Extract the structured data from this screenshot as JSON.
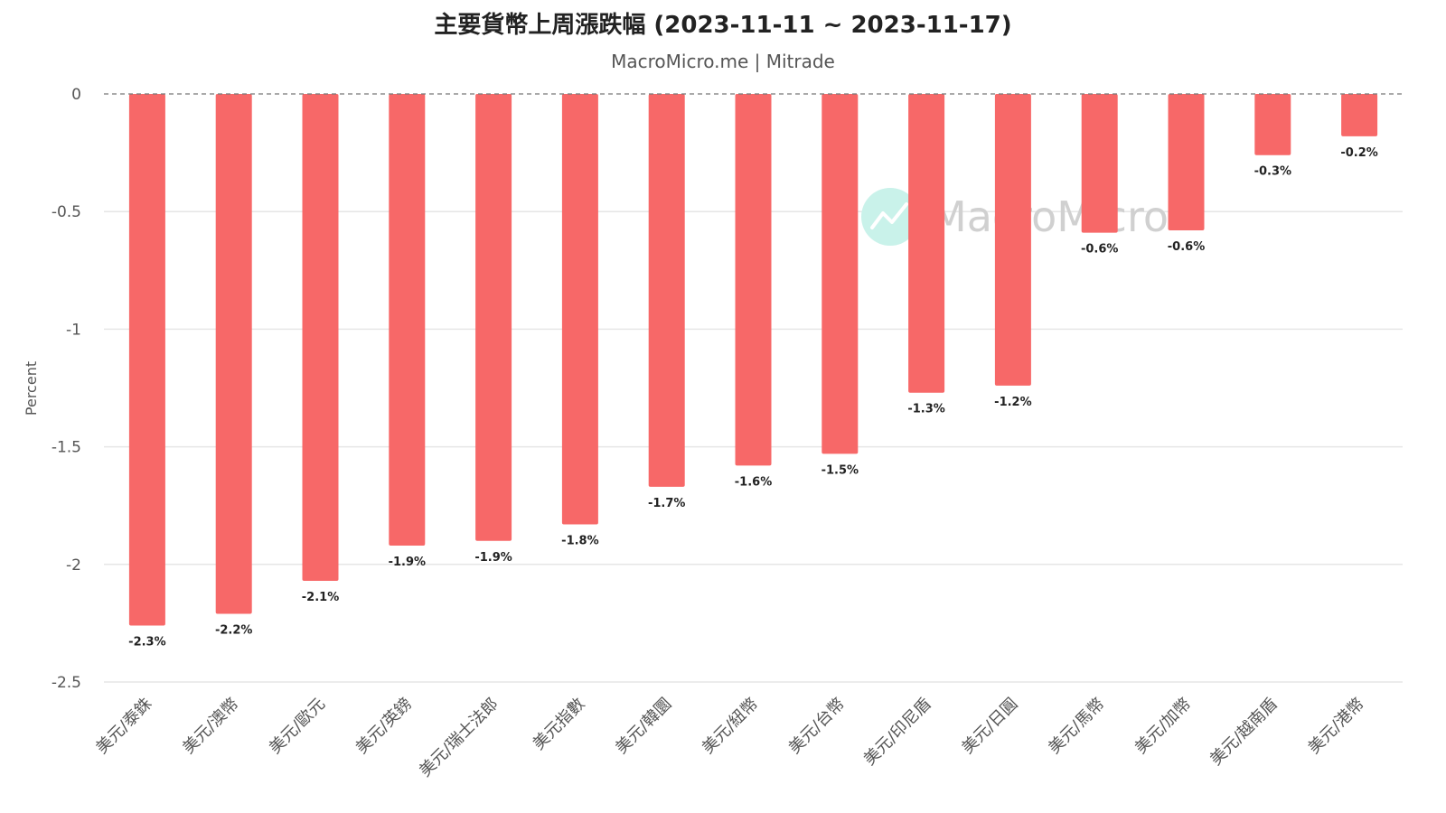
{
  "colors": {
    "bar": "#f76868",
    "grid": "#e6e6e6",
    "zero": "#777777",
    "watermark_circle": "#c9f2ea",
    "watermark_line": "#ffffff"
  },
  "watermark": {
    "text": "MacroMicro",
    "icon": "trend-line-icon"
  },
  "chart_data": {
    "type": "bar",
    "title": "主要貨幣上周漲跌幅 (2023-11-11 ~ 2023-11-17)",
    "subtitle": "MacroMicro.me | Mitrade",
    "xlabel": "",
    "ylabel": "Percent",
    "ylim": [
      -2.5,
      0
    ],
    "yticks": [
      0,
      -0.5,
      -1,
      -1.5,
      -2,
      -2.5
    ],
    "ytick_labels": [
      "0",
      "-0.5",
      "-1",
      "-1.5",
      "-2",
      "-2.5"
    ],
    "categories": [
      "美元/泰銖",
      "美元/澳幣",
      "美元/歐元",
      "美元/英鎊",
      "美元/瑞士法郎",
      "美元指數",
      "美元/韓圜",
      "美元/紐幣",
      "美元/台幣",
      "美元/印尼盾",
      "美元/日圓",
      "美元/馬幣",
      "美元/加幣",
      "美元/越南盾",
      "美元/港幣"
    ],
    "values": [
      -2.26,
      -2.21,
      -2.07,
      -1.92,
      -1.9,
      -1.83,
      -1.67,
      -1.58,
      -1.53,
      -1.27,
      -1.24,
      -0.59,
      -0.58,
      -0.26,
      -0.18
    ],
    "data_labels": [
      "-2.3%",
      "-2.2%",
      "-2.1%",
      "-1.9%",
      "-1.9%",
      "-1.8%",
      "-1.7%",
      "-1.6%",
      "-1.5%",
      "-1.3%",
      "-1.2%",
      "-0.6%",
      "-0.6%",
      "-0.3%",
      "-0.2%"
    ],
    "grid": true,
    "legend": "none"
  }
}
